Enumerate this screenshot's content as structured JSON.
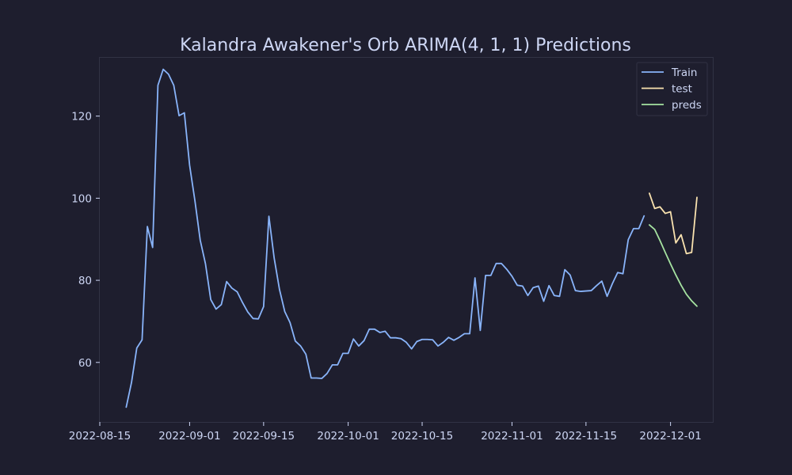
{
  "chart_data": {
    "type": "line",
    "title": "Kalandra Awakener's Orb ARIMA(4, 1, 1) Predictions",
    "xlabel": "",
    "ylabel": "",
    "xlim": [
      "2022-08-15",
      "2022-12-09"
    ],
    "ylim": [
      45.5,
      134.2
    ],
    "x_ticks": [
      "2022-08-15",
      "2022-09-01",
      "2022-09-15",
      "2022-10-01",
      "2022-10-15",
      "2022-11-01",
      "2022-11-15",
      "2022-12-01"
    ],
    "y_ticks": [
      60,
      80,
      100,
      120
    ],
    "grid": false,
    "legend_position": "top-right",
    "colors": {
      "background": "#1e1e2e",
      "axes_border": "#313244",
      "text": "#cdd6f4",
      "train": "#89b4fa",
      "test": "#f9e2af",
      "preds": "#a6e3a1"
    },
    "series": [
      {
        "name": "Train",
        "points": [
          [
            "2022-08-20",
            49.1
          ],
          [
            "2022-08-21",
            55.1
          ],
          [
            "2022-08-22",
            63.5
          ],
          [
            "2022-08-23",
            65.5
          ],
          [
            "2022-08-24",
            93.1
          ],
          [
            "2022-08-25",
            88.0
          ],
          [
            "2022-08-26",
            127.5
          ],
          [
            "2022-08-27",
            131.4
          ],
          [
            "2022-08-28",
            130.2
          ],
          [
            "2022-08-29",
            127.5
          ],
          [
            "2022-08-30",
            120.1
          ],
          [
            "2022-08-31",
            120.8
          ],
          [
            "2022-09-01",
            108.0
          ],
          [
            "2022-09-02",
            99.4
          ],
          [
            "2022-09-03",
            89.8
          ],
          [
            "2022-09-04",
            84.0
          ],
          [
            "2022-09-05",
            75.3
          ],
          [
            "2022-09-06",
            73.0
          ],
          [
            "2022-09-07",
            74.1
          ],
          [
            "2022-09-08",
            79.7
          ],
          [
            "2022-09-09",
            78.1
          ],
          [
            "2022-09-10",
            77.2
          ],
          [
            "2022-09-11",
            74.6
          ],
          [
            "2022-09-12",
            72.3
          ],
          [
            "2022-09-13",
            70.7
          ],
          [
            "2022-09-14",
            70.6
          ],
          [
            "2022-09-15",
            73.6
          ],
          [
            "2022-09-16",
            95.6
          ],
          [
            "2022-09-17",
            85.4
          ],
          [
            "2022-09-18",
            77.8
          ],
          [
            "2022-09-19",
            72.4
          ],
          [
            "2022-09-20",
            69.7
          ],
          [
            "2022-09-21",
            65.2
          ],
          [
            "2022-09-22",
            64.0
          ],
          [
            "2022-09-23",
            62.0
          ],
          [
            "2022-09-24",
            56.2
          ],
          [
            "2022-09-25",
            56.2
          ],
          [
            "2022-09-26",
            56.1
          ],
          [
            "2022-09-27",
            57.3
          ],
          [
            "2022-09-28",
            59.4
          ],
          [
            "2022-09-29",
            59.4
          ],
          [
            "2022-09-30",
            62.2
          ],
          [
            "2022-10-01",
            62.2
          ],
          [
            "2022-10-02",
            65.7
          ],
          [
            "2022-10-03",
            64.0
          ],
          [
            "2022-10-04",
            65.3
          ],
          [
            "2022-10-05",
            68.1
          ],
          [
            "2022-10-06",
            68.1
          ],
          [
            "2022-10-07",
            67.3
          ],
          [
            "2022-10-08",
            67.6
          ],
          [
            "2022-10-09",
            66.0
          ],
          [
            "2022-10-10",
            66.0
          ],
          [
            "2022-10-11",
            65.8
          ],
          [
            "2022-10-12",
            64.9
          ],
          [
            "2022-10-13",
            63.3
          ],
          [
            "2022-10-14",
            65.1
          ],
          [
            "2022-10-15",
            65.6
          ],
          [
            "2022-10-16",
            65.6
          ],
          [
            "2022-10-17",
            65.5
          ],
          [
            "2022-10-18",
            64.0
          ],
          [
            "2022-10-19",
            64.9
          ],
          [
            "2022-10-20",
            66.1
          ],
          [
            "2022-10-21",
            65.4
          ],
          [
            "2022-10-22",
            66.1
          ],
          [
            "2022-10-23",
            67.0
          ],
          [
            "2022-10-24",
            67.0
          ],
          [
            "2022-10-25",
            80.6
          ],
          [
            "2022-10-26",
            67.8
          ],
          [
            "2022-10-27",
            81.2
          ],
          [
            "2022-10-28",
            81.2
          ],
          [
            "2022-10-29",
            84.1
          ],
          [
            "2022-10-30",
            84.1
          ],
          [
            "2022-10-31",
            82.7
          ],
          [
            "2022-11-01",
            81.0
          ],
          [
            "2022-11-02",
            78.8
          ],
          [
            "2022-11-03",
            78.6
          ],
          [
            "2022-11-04",
            76.3
          ],
          [
            "2022-11-05",
            78.2
          ],
          [
            "2022-11-06",
            78.6
          ],
          [
            "2022-11-07",
            74.9
          ],
          [
            "2022-11-08",
            78.7
          ],
          [
            "2022-11-09",
            76.3
          ],
          [
            "2022-11-10",
            76.1
          ],
          [
            "2022-11-11",
            82.6
          ],
          [
            "2022-11-12",
            81.3
          ],
          [
            "2022-11-13",
            77.5
          ],
          [
            "2022-11-14",
            77.3
          ],
          [
            "2022-11-15",
            77.4
          ],
          [
            "2022-11-16",
            77.5
          ],
          [
            "2022-11-17",
            78.7
          ],
          [
            "2022-11-18",
            79.8
          ],
          [
            "2022-11-19",
            76.1
          ],
          [
            "2022-11-20",
            79.2
          ],
          [
            "2022-11-21",
            81.9
          ],
          [
            "2022-11-22",
            81.6
          ],
          [
            "2022-11-23",
            89.9
          ],
          [
            "2022-11-24",
            92.6
          ],
          [
            "2022-11-25",
            92.6
          ],
          [
            "2022-11-26",
            95.7
          ]
        ]
      },
      {
        "name": "test",
        "points": [
          [
            "2022-11-27",
            101.2
          ],
          [
            "2022-11-28",
            97.5
          ],
          [
            "2022-11-29",
            97.9
          ],
          [
            "2022-11-30",
            96.3
          ],
          [
            "2022-12-01",
            96.7
          ],
          [
            "2022-12-02",
            89.1
          ],
          [
            "2022-12-03",
            91.1
          ],
          [
            "2022-12-04",
            86.5
          ],
          [
            "2022-12-05",
            86.8
          ],
          [
            "2022-12-06",
            100.2
          ]
        ]
      },
      {
        "name": "preds",
        "points": [
          [
            "2022-11-27",
            93.5
          ],
          [
            "2022-11-28",
            92.4
          ],
          [
            "2022-11-29",
            89.7
          ],
          [
            "2022-11-30",
            86.8
          ],
          [
            "2022-12-01",
            84.0
          ],
          [
            "2022-12-02",
            81.3
          ],
          [
            "2022-12-03",
            78.8
          ],
          [
            "2022-12-04",
            76.6
          ],
          [
            "2022-12-05",
            75.0
          ],
          [
            "2022-12-06",
            73.7
          ]
        ]
      }
    ]
  }
}
